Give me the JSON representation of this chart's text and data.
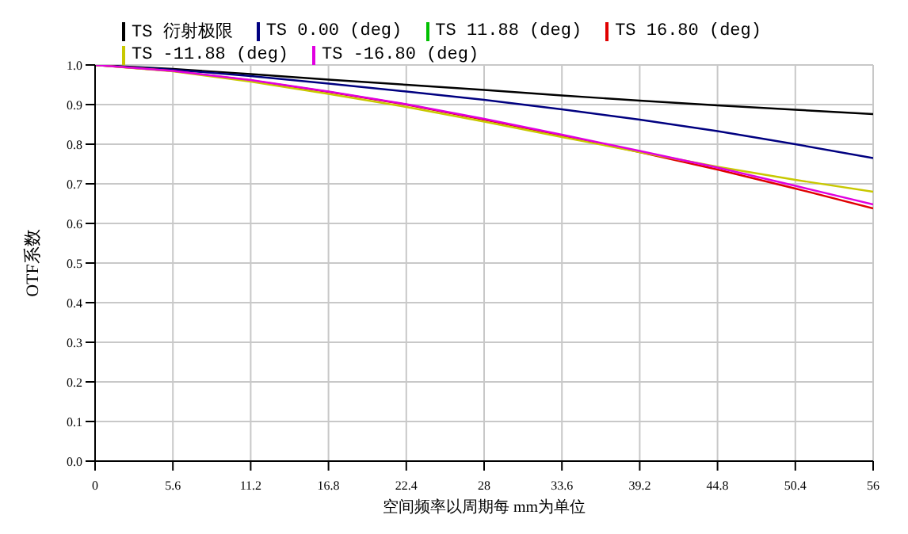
{
  "chart_data": {
    "type": "line",
    "xlabel": "空间频率以周期每 mm为单位",
    "ylabel": "OTF系数",
    "x": [
      0,
      5.6,
      11.2,
      16.8,
      22.4,
      28,
      33.6,
      39.2,
      44.8,
      50.4,
      56
    ],
    "xlim": [
      0,
      56
    ],
    "xticks": [
      0,
      5.6,
      11.2,
      16.8,
      22.4,
      28,
      33.6,
      39.2,
      44.8,
      50.4,
      56
    ],
    "ylim": [
      0,
      1
    ],
    "yticks": [
      {
        "value": 0,
        "label": "0.0"
      },
      0.1,
      0.2,
      0.3,
      0.4,
      0.5,
      0.6,
      0.7,
      0.8,
      0.9,
      {
        "value": 1,
        "label": "1.0"
      }
    ],
    "grid": true,
    "legend": "top",
    "marker": "none",
    "line_style": "solid",
    "series": [
      {
        "name": "TS 衍射极限",
        "color": "#000000",
        "values": [
          1,
          0.99,
          0.977,
          0.963,
          0.95,
          0.937,
          0.923,
          0.91,
          0.898,
          0.887,
          0.876
        ]
      },
      {
        "name": "TS 0.00 (deg)",
        "color": "#000080",
        "values": [
          1,
          0.988,
          0.972,
          0.953,
          0.933,
          0.912,
          0.888,
          0.862,
          0.833,
          0.8,
          0.765
        ]
      },
      {
        "name": "TS 11.88 (deg)",
        "color": "#00c000",
        "values": [
          null,
          null,
          null,
          null,
          null,
          null,
          null,
          null,
          null,
          null,
          null
        ]
      },
      {
        "name": "TS 16.80 (deg)",
        "color": "#e00000",
        "values": [
          1,
          0.985,
          0.961,
          0.932,
          0.9,
          0.862,
          0.822,
          0.78,
          0.736,
          0.688,
          0.638
        ]
      },
      {
        "name": "TS -11.88 (deg)",
        "color": "#c8c800",
        "values": [
          1,
          0.984,
          0.958,
          0.927,
          0.894,
          0.857,
          0.818,
          0.78,
          0.743,
          0.71,
          0.68
        ]
      },
      {
        "name": "TS -16.80 (deg)",
        "color": "#e000e0",
        "values": [
          1,
          0.985,
          0.962,
          0.933,
          0.901,
          0.864,
          0.824,
          0.783,
          0.741,
          0.695,
          0.648
        ]
      }
    ]
  }
}
